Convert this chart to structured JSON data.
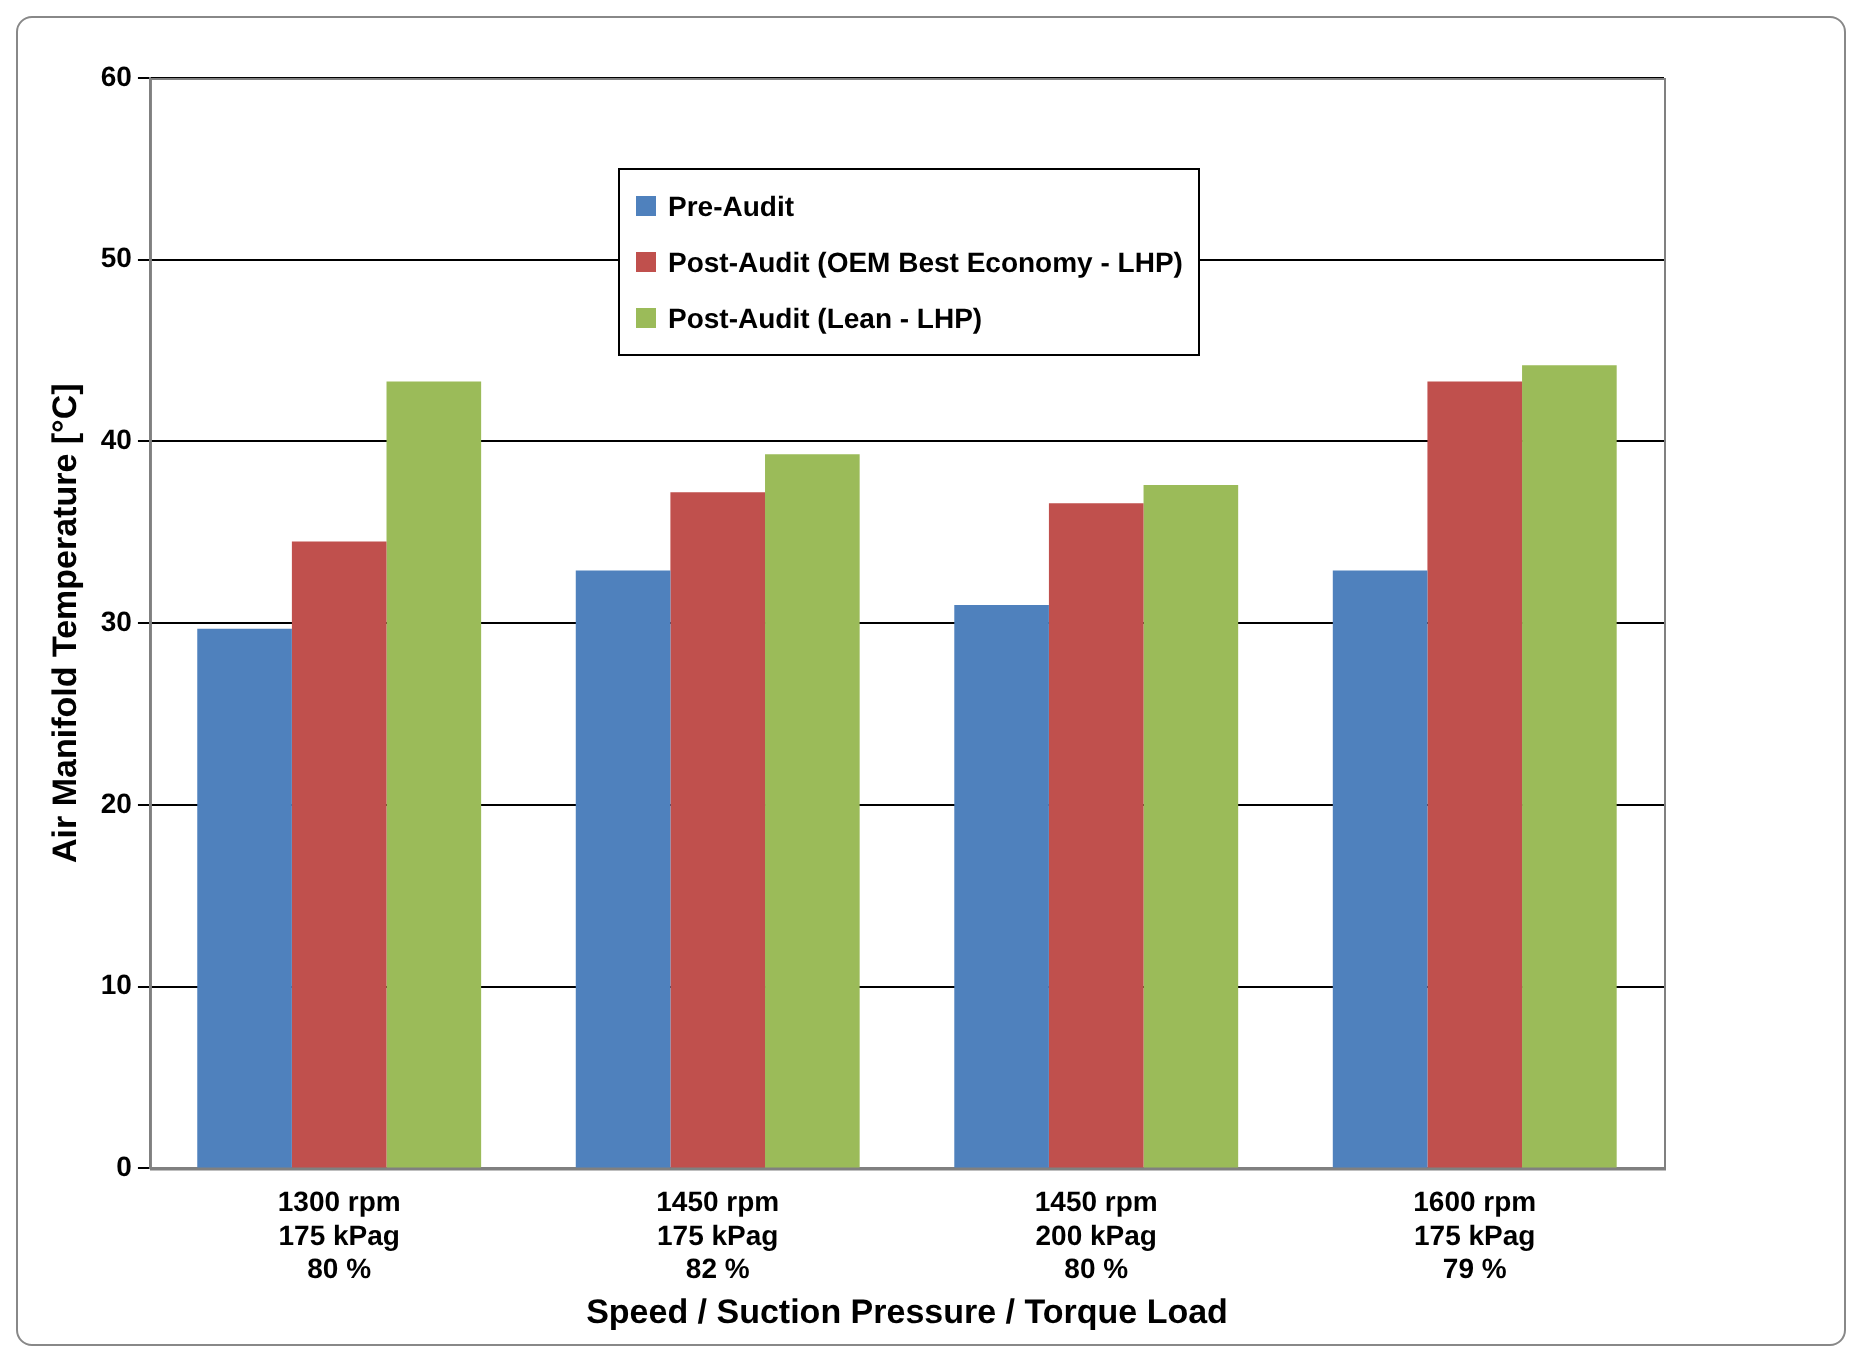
{
  "chart_data": {
    "type": "bar",
    "xlabel": "Speed / Suction Pressure / Torque Load",
    "ylabel": "Air Manifold Temperature [°C]",
    "categories": [
      "1300 rpm\n175 kPag\n80 %",
      "1450 rpm\n175 kPag\n82 %",
      "1450 rpm\n200 kPag\n80 %",
      "1600 rpm\n175 kPag\n79 %"
    ],
    "series": [
      {
        "name": "Pre-Audit",
        "color": "#4f81bd",
        "values": [
          29.7,
          32.9,
          31.0,
          32.9
        ]
      },
      {
        "name": "Post-Audit (OEM Best Economy - LHP)",
        "color": "#c0504d",
        "values": [
          34.5,
          37.2,
          36.6,
          43.3
        ]
      },
      {
        "name": "Post-Audit (Lean - LHP)",
        "color": "#9bbb59",
        "values": [
          43.3,
          39.3,
          37.6,
          44.2
        ]
      }
    ],
    "ylim": [
      0,
      60
    ],
    "yticks": [
      0,
      10,
      20,
      30,
      40,
      50,
      60
    ],
    "grid": "y",
    "legend": "top"
  }
}
